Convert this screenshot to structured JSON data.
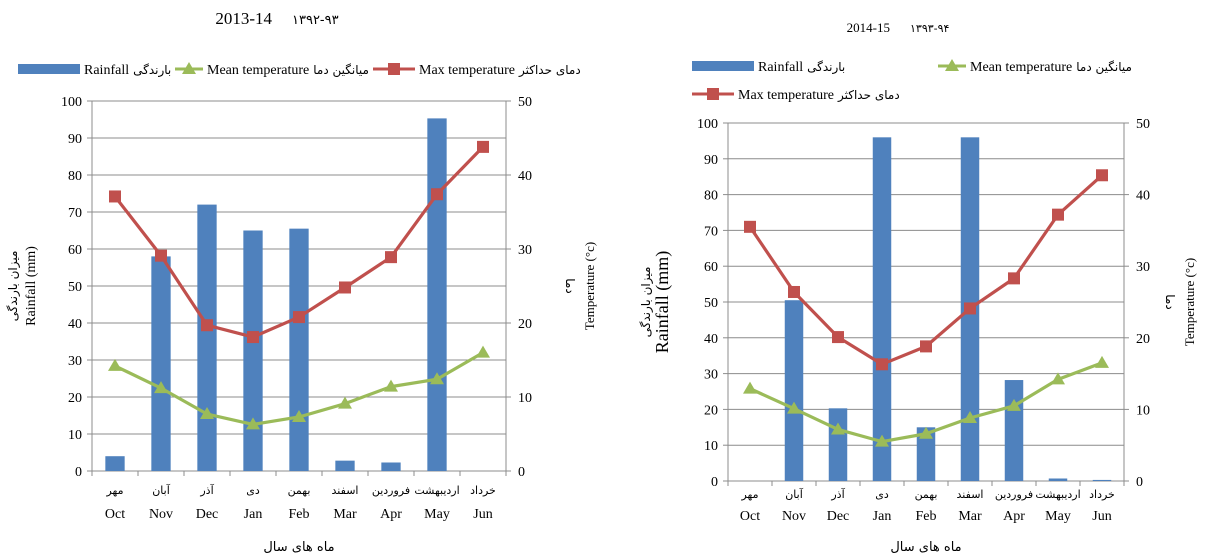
{
  "chart_data": [
    {
      "type": "bar",
      "title": "2013-14",
      "title_fa": "۱۳۹۲-۹۳",
      "categories": [
        "Oct",
        "Nov",
        "Dec",
        "Jan",
        "Feb",
        "Mar",
        "Apr",
        "May",
        "Jun"
      ],
      "categories_fa": [
        "مهر",
        "آبان",
        "آذر",
        "دی",
        "بهمن",
        "اسفند",
        "فروردین",
        "اردیبهشت",
        "خرداد"
      ],
      "xlabel": "ماه های سال",
      "ylabel": "Rainfall (mm)",
      "ylabel_fa": "میزان بارندگی",
      "y2label": "Temperature (°c)",
      "y2label_fa": "دما",
      "ylim": [
        0,
        100
      ],
      "y2lim": [
        0,
        50
      ],
      "yticks": [
        0,
        10,
        20,
        30,
        40,
        50,
        60,
        70,
        80,
        90,
        100
      ],
      "y2ticks": [
        0,
        10,
        20,
        30,
        40,
        50
      ],
      "legend_position": "top",
      "series": [
        {
          "name": "Rainfall",
          "name_fa": "بارندگی",
          "type": "bar",
          "axis": "left",
          "color": "#4f81bd",
          "values": [
            4,
            58,
            72,
            65,
            65.5,
            2.8,
            2.3,
            95.3,
            0
          ]
        },
        {
          "name": "Mean temperature",
          "name_fa": "میانگین دما",
          "type": "line",
          "axis": "right",
          "color": "#9bbb59",
          "marker": "triangle",
          "values": [
            14.2,
            11.2,
            7.7,
            6.3,
            7.3,
            9.1,
            11.4,
            12.4,
            16
          ]
        },
        {
          "name": "Max temperature",
          "name_fa": "دمای حداکثر",
          "type": "line",
          "axis": "right",
          "color": "#c0504d",
          "marker": "square",
          "values": [
            37.1,
            29.1,
            19.7,
            18.1,
            20.8,
            24.8,
            28.9,
            37.4,
            43.8
          ]
        }
      ]
    },
    {
      "type": "bar",
      "title": "2014-15",
      "title_fa": "۱۳۹۳-۹۴",
      "categories": [
        "Oct",
        "Nov",
        "Dec",
        "Jan",
        "Feb",
        "Mar",
        "Apr",
        "May",
        "Jun"
      ],
      "categories_fa": [
        "مهر",
        "آبان",
        "آذر",
        "دی",
        "بهمن",
        "اسفند",
        "فروردین",
        "اردیبهشت",
        "خرداد"
      ],
      "xlabel": "ماه های سال",
      "ylabel": "Rainfall (mm)",
      "ylabel_fa": "میزان بارندگی",
      "y2label": "Temperature (°c)",
      "y2label_fa": "دما",
      "ylim": [
        0,
        100
      ],
      "y2lim": [
        0,
        50
      ],
      "yticks": [
        0,
        10,
        20,
        30,
        40,
        50,
        60,
        70,
        80,
        90,
        100
      ],
      "y2ticks": [
        0,
        10,
        20,
        30,
        40,
        50
      ],
      "legend_position": "top",
      "series": [
        {
          "name": "Rainfall",
          "name_fa": "بارندگی",
          "type": "bar",
          "axis": "left",
          "color": "#4f81bd",
          "values": [
            0,
            50.5,
            20.3,
            96,
            15,
            96,
            28.2,
            0.7,
            0.3
          ]
        },
        {
          "name": "Mean temperature",
          "name_fa": "میانگین دما",
          "type": "line",
          "axis": "right",
          "color": "#9bbb59",
          "marker": "triangle",
          "values": [
            12.9,
            10.1,
            7.2,
            5.5,
            6.6,
            8.8,
            10.5,
            14.2,
            16.5
          ]
        },
        {
          "name": "Max temperature",
          "name_fa": "دمای حداکثر",
          "type": "line",
          "axis": "right",
          "color": "#c0504d",
          "marker": "square",
          "values": [
            35.5,
            26.4,
            20.1,
            16.3,
            18.8,
            24.1,
            28.3,
            37.2,
            42.7
          ]
        }
      ]
    }
  ]
}
